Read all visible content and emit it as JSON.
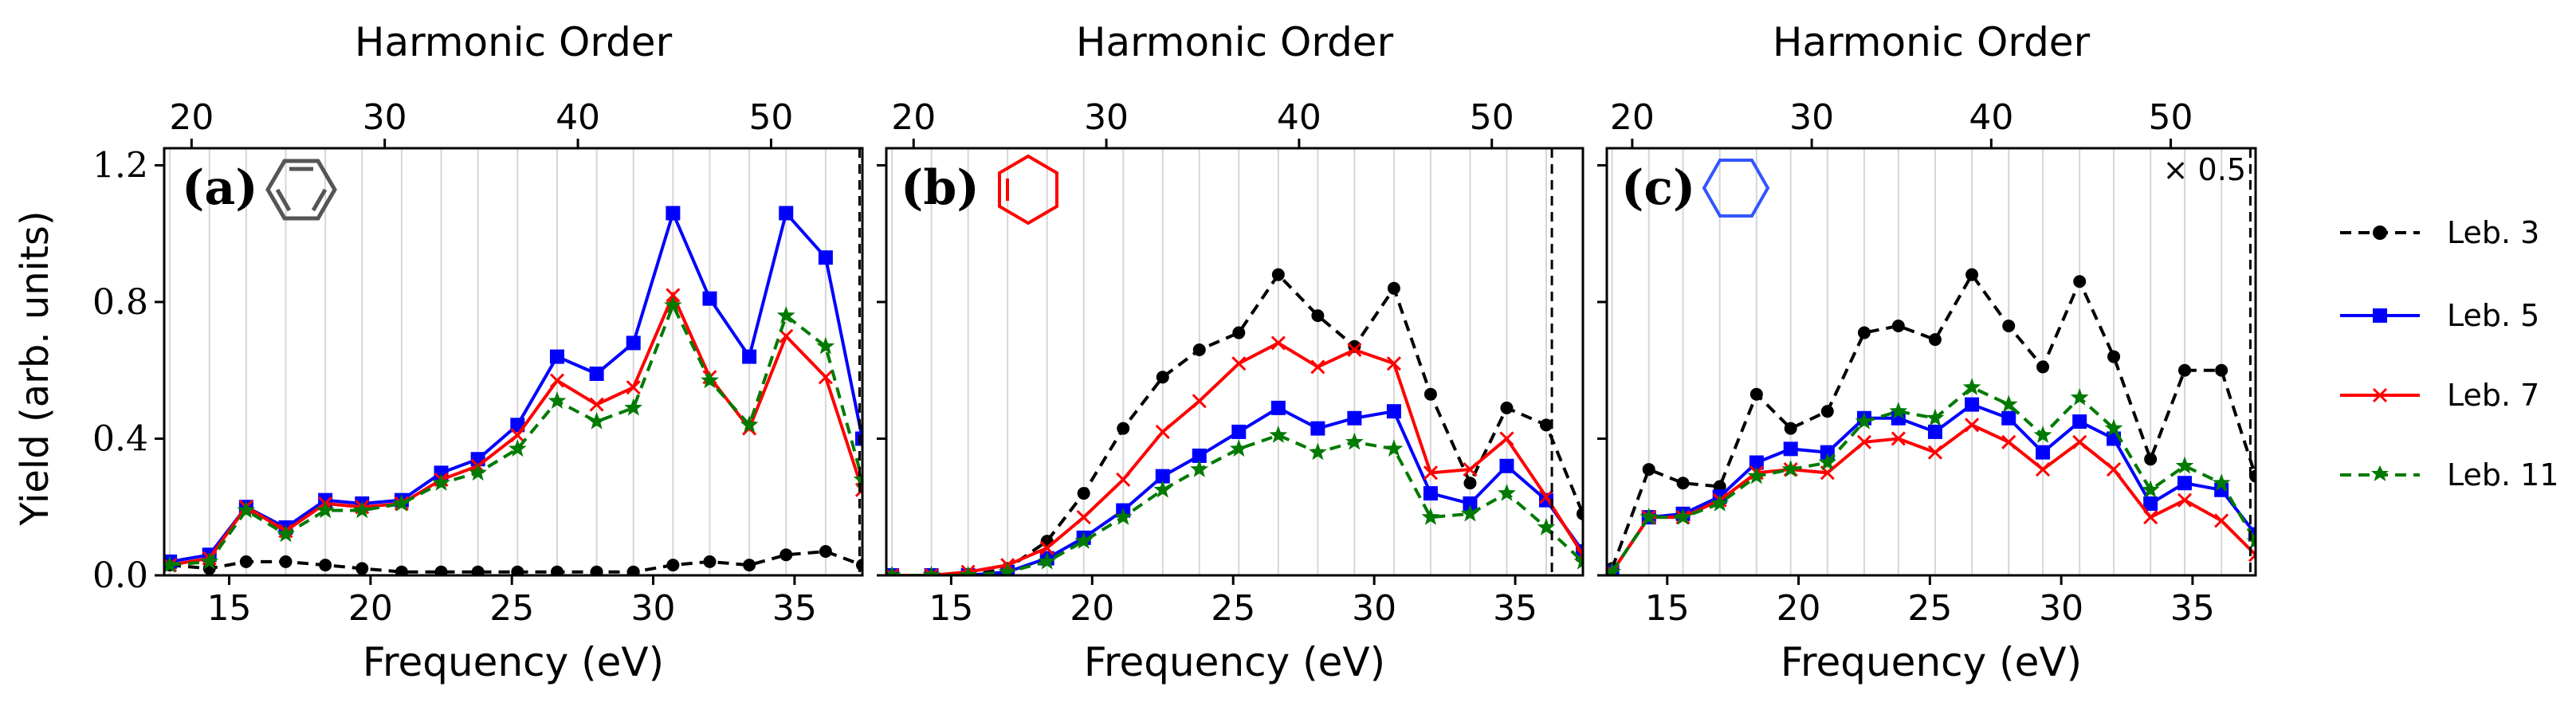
{
  "figure": {
    "top_axis_label": "Harmonic Order",
    "bottom_axis_label": "Frequency (eV)",
    "y_axis_label": "Yield (arb. units)",
    "legend": [
      "Leb. 3",
      "Leb. 5",
      "Leb. 7",
      "Leb. 11"
    ],
    "colors": {
      "Leb. 3": "#000000",
      "Leb. 5": "#0000ff",
      "Leb. 7": "#ff0000",
      "Leb. 11": "#007a00"
    },
    "molecule_icons": [
      {
        "panel": "a",
        "molecule": "benzene-ring-icon",
        "color": "#555555"
      },
      {
        "panel": "b",
        "molecule": "cyclohexene-ring-icon",
        "color": "#ff0000"
      },
      {
        "panel": "c",
        "molecule": "cyclohexane-ring-icon",
        "color": "#3355ff"
      }
    ]
  },
  "chart_data": [
    {
      "type": "line",
      "panel_label": "(a)",
      "annotation": "",
      "xlabel": "Frequency (eV)",
      "top_xlabel": "Harmonic Order",
      "ylabel": "Yield (arb. units)",
      "xlim": [
        12.7,
        37.4
      ],
      "ylim": [
        0,
        1.25
      ],
      "x_ticks": [
        15,
        20,
        25,
        30,
        35
      ],
      "y_ticks": [
        "0.0",
        "0.4",
        "0.8",
        "1.2"
      ],
      "top_ticks": [
        20,
        30,
        40,
        50
      ],
      "vertical_dashed_line_x": 37.3,
      "series": [
        {
          "name": "Leb. 3",
          "marker": "circle",
          "dash": true,
          "points": [
            [
              12.9,
              0.03
            ],
            [
              14.3,
              0.02
            ],
            [
              15.6,
              0.04
            ],
            [
              17.0,
              0.04
            ],
            [
              18.4,
              0.03
            ],
            [
              19.7,
              0.02
            ],
            [
              21.1,
              0.01
            ],
            [
              22.5,
              0.01
            ],
            [
              23.8,
              0.01
            ],
            [
              25.2,
              0.01
            ],
            [
              26.6,
              0.01
            ],
            [
              28.0,
              0.01
            ],
            [
              29.3,
              0.01
            ],
            [
              30.7,
              0.03
            ],
            [
              32.0,
              0.04
            ],
            [
              33.4,
              0.03
            ],
            [
              34.7,
              0.06
            ],
            [
              36.1,
              0.07
            ],
            [
              37.4,
              0.03
            ]
          ]
        },
        {
          "name": "Leb. 5",
          "marker": "square",
          "dash": false,
          "points": [
            [
              12.9,
              0.04
            ],
            [
              14.3,
              0.06
            ],
            [
              15.6,
              0.2
            ],
            [
              17.0,
              0.14
            ],
            [
              18.4,
              0.22
            ],
            [
              19.7,
              0.21
            ],
            [
              21.1,
              0.22
            ],
            [
              22.5,
              0.3
            ],
            [
              23.8,
              0.34
            ],
            [
              25.2,
              0.44
            ],
            [
              26.6,
              0.64
            ],
            [
              28.0,
              0.59
            ],
            [
              29.3,
              0.68
            ],
            [
              30.7,
              1.06
            ],
            [
              32.0,
              0.81
            ],
            [
              33.4,
              0.64
            ],
            [
              34.7,
              1.06
            ],
            [
              36.1,
              0.93
            ],
            [
              37.4,
              0.4
            ]
          ]
        },
        {
          "name": "Leb. 7",
          "marker": "cross",
          "dash": false,
          "points": [
            [
              12.9,
              0.03
            ],
            [
              14.3,
              0.05
            ],
            [
              15.6,
              0.2
            ],
            [
              17.0,
              0.13
            ],
            [
              18.4,
              0.21
            ],
            [
              19.7,
              0.2
            ],
            [
              21.1,
              0.21
            ],
            [
              22.5,
              0.28
            ],
            [
              23.8,
              0.32
            ],
            [
              25.2,
              0.41
            ],
            [
              26.6,
              0.57
            ],
            [
              28.0,
              0.5
            ],
            [
              29.3,
              0.55
            ],
            [
              30.7,
              0.82
            ],
            [
              32.0,
              0.58
            ],
            [
              33.4,
              0.43
            ],
            [
              34.7,
              0.7
            ],
            [
              36.1,
              0.58
            ],
            [
              37.4,
              0.25
            ]
          ]
        },
        {
          "name": "Leb. 11",
          "marker": "star",
          "dash": true,
          "points": [
            [
              12.9,
              0.03
            ],
            [
              14.3,
              0.04
            ],
            [
              15.6,
              0.19
            ],
            [
              17.0,
              0.12
            ],
            [
              18.4,
              0.19
            ],
            [
              19.7,
              0.19
            ],
            [
              21.1,
              0.21
            ],
            [
              22.5,
              0.27
            ],
            [
              23.8,
              0.3
            ],
            [
              25.2,
              0.37
            ],
            [
              26.6,
              0.51
            ],
            [
              28.0,
              0.45
            ],
            [
              29.3,
              0.49
            ],
            [
              30.7,
              0.79
            ],
            [
              32.0,
              0.57
            ],
            [
              33.4,
              0.44
            ],
            [
              34.7,
              0.76
            ],
            [
              36.1,
              0.67
            ],
            [
              37.4,
              0.28
            ]
          ]
        }
      ]
    },
    {
      "type": "line",
      "panel_label": "(b)",
      "annotation": "",
      "xlabel": "Frequency (eV)",
      "top_xlabel": "Harmonic Order",
      "ylabel": "",
      "xlim": [
        12.7,
        37.4
      ],
      "ylim": [
        0,
        1.25
      ],
      "x_ticks": [
        15,
        20,
        25,
        30,
        35
      ],
      "y_ticks": [],
      "top_ticks": [
        20,
        30,
        40,
        50
      ],
      "vertical_dashed_line_x": 36.3,
      "series": [
        {
          "name": "Leb. 3",
          "marker": "circle",
          "dash": true,
          "points": [
            [
              12.9,
              0.0
            ],
            [
              14.3,
              0.0
            ],
            [
              15.6,
              0.0
            ],
            [
              17.0,
              0.02
            ],
            [
              18.4,
              0.1
            ],
            [
              19.7,
              0.24
            ],
            [
              21.1,
              0.43
            ],
            [
              22.5,
              0.58
            ],
            [
              23.8,
              0.66
            ],
            [
              25.2,
              0.71
            ],
            [
              26.6,
              0.88
            ],
            [
              28.0,
              0.76
            ],
            [
              29.3,
              0.67
            ],
            [
              30.7,
              0.84
            ],
            [
              32.0,
              0.53
            ],
            [
              33.4,
              0.27
            ],
            [
              34.7,
              0.49
            ],
            [
              36.1,
              0.44
            ],
            [
              37.4,
              0.18
            ]
          ]
        },
        {
          "name": "Leb. 5",
          "marker": "square",
          "dash": false,
          "points": [
            [
              12.9,
              0.0
            ],
            [
              14.3,
              0.0
            ],
            [
              15.6,
              0.0
            ],
            [
              17.0,
              0.01
            ],
            [
              18.4,
              0.05
            ],
            [
              19.7,
              0.11
            ],
            [
              21.1,
              0.19
            ],
            [
              22.5,
              0.29
            ],
            [
              23.8,
              0.35
            ],
            [
              25.2,
              0.42
            ],
            [
              26.6,
              0.49
            ],
            [
              28.0,
              0.43
            ],
            [
              29.3,
              0.46
            ],
            [
              30.7,
              0.48
            ],
            [
              32.0,
              0.24
            ],
            [
              33.4,
              0.21
            ],
            [
              34.7,
              0.32
            ],
            [
              36.1,
              0.22
            ],
            [
              37.4,
              0.07
            ]
          ]
        },
        {
          "name": "Leb. 7",
          "marker": "cross",
          "dash": false,
          "points": [
            [
              12.9,
              0.0
            ],
            [
              14.3,
              0.0
            ],
            [
              15.6,
              0.01
            ],
            [
              17.0,
              0.03
            ],
            [
              18.4,
              0.08
            ],
            [
              19.7,
              0.17
            ],
            [
              21.1,
              0.28
            ],
            [
              22.5,
              0.42
            ],
            [
              23.8,
              0.51
            ],
            [
              25.2,
              0.62
            ],
            [
              26.6,
              0.68
            ],
            [
              28.0,
              0.61
            ],
            [
              29.3,
              0.66
            ],
            [
              30.7,
              0.62
            ],
            [
              32.0,
              0.3
            ],
            [
              33.4,
              0.31
            ],
            [
              34.7,
              0.4
            ],
            [
              36.1,
              0.23
            ],
            [
              37.4,
              0.06
            ]
          ]
        },
        {
          "name": "Leb. 11",
          "marker": "star",
          "dash": true,
          "points": [
            [
              12.9,
              0.0
            ],
            [
              14.3,
              0.0
            ],
            [
              15.6,
              0.0
            ],
            [
              17.0,
              0.01
            ],
            [
              18.4,
              0.04
            ],
            [
              19.7,
              0.1
            ],
            [
              21.1,
              0.17
            ],
            [
              22.5,
              0.25
            ],
            [
              23.8,
              0.31
            ],
            [
              25.2,
              0.37
            ],
            [
              26.6,
              0.41
            ],
            [
              28.0,
              0.36
            ],
            [
              29.3,
              0.39
            ],
            [
              30.7,
              0.37
            ],
            [
              32.0,
              0.17
            ],
            [
              33.4,
              0.18
            ],
            [
              34.7,
              0.24
            ],
            [
              36.1,
              0.14
            ],
            [
              37.4,
              0.04
            ]
          ]
        }
      ]
    },
    {
      "type": "line",
      "panel_label": "(c)",
      "annotation": "× 0.5",
      "xlabel": "Frequency (eV)",
      "top_xlabel": "Harmonic Order",
      "ylabel": "",
      "xlim": [
        12.7,
        37.4
      ],
      "ylim": [
        0,
        1.25
      ],
      "x_ticks": [
        15,
        20,
        25,
        30,
        35
      ],
      "y_ticks": [],
      "top_ticks": [
        20,
        30,
        40,
        50
      ],
      "vertical_dashed_line_x": 37.2,
      "series": [
        {
          "name": "Leb. 3",
          "marker": "circle",
          "dash": true,
          "points": [
            [
              12.9,
              0.02
            ],
            [
              14.3,
              0.31
            ],
            [
              15.6,
              0.27
            ],
            [
              17.0,
              0.26
            ],
            [
              18.4,
              0.53
            ],
            [
              19.7,
              0.43
            ],
            [
              21.1,
              0.48
            ],
            [
              22.5,
              0.71
            ],
            [
              23.8,
              0.73
            ],
            [
              25.2,
              0.69
            ],
            [
              26.6,
              0.88
            ],
            [
              28.0,
              0.73
            ],
            [
              29.3,
              0.61
            ],
            [
              30.7,
              0.86
            ],
            [
              32.0,
              0.64
            ],
            [
              33.4,
              0.34
            ],
            [
              34.7,
              0.6
            ],
            [
              36.1,
              0.6
            ],
            [
              37.4,
              0.29
            ]
          ]
        },
        {
          "name": "Leb. 5",
          "marker": "square",
          "dash": false,
          "points": [
            [
              12.9,
              0.01
            ],
            [
              14.3,
              0.17
            ],
            [
              15.6,
              0.18
            ],
            [
              17.0,
              0.23
            ],
            [
              18.4,
              0.33
            ],
            [
              19.7,
              0.37
            ],
            [
              21.1,
              0.36
            ],
            [
              22.5,
              0.46
            ],
            [
              23.8,
              0.46
            ],
            [
              25.2,
              0.42
            ],
            [
              26.6,
              0.5
            ],
            [
              28.0,
              0.46
            ],
            [
              29.3,
              0.36
            ],
            [
              30.7,
              0.45
            ],
            [
              32.0,
              0.4
            ],
            [
              33.4,
              0.21
            ],
            [
              34.7,
              0.27
            ],
            [
              36.1,
              0.25
            ],
            [
              37.4,
              0.12
            ]
          ]
        },
        {
          "name": "Leb. 7",
          "marker": "cross",
          "dash": false,
          "points": [
            [
              12.9,
              0.01
            ],
            [
              14.3,
              0.17
            ],
            [
              15.6,
              0.17
            ],
            [
              17.0,
              0.22
            ],
            [
              18.4,
              0.3
            ],
            [
              19.7,
              0.31
            ],
            [
              21.1,
              0.3
            ],
            [
              22.5,
              0.39
            ],
            [
              23.8,
              0.4
            ],
            [
              25.2,
              0.36
            ],
            [
              26.6,
              0.44
            ],
            [
              28.0,
              0.39
            ],
            [
              29.3,
              0.31
            ],
            [
              30.7,
              0.39
            ],
            [
              32.0,
              0.31
            ],
            [
              33.4,
              0.17
            ],
            [
              34.7,
              0.22
            ],
            [
              36.1,
              0.16
            ],
            [
              37.4,
              0.06
            ]
          ]
        },
        {
          "name": "Leb. 11",
          "marker": "star",
          "dash": true,
          "points": [
            [
              12.9,
              0.01
            ],
            [
              14.3,
              0.17
            ],
            [
              15.6,
              0.17
            ],
            [
              17.0,
              0.21
            ],
            [
              18.4,
              0.29
            ],
            [
              19.7,
              0.31
            ],
            [
              21.1,
              0.33
            ],
            [
              22.5,
              0.45
            ],
            [
              23.8,
              0.48
            ],
            [
              25.2,
              0.46
            ],
            [
              26.6,
              0.55
            ],
            [
              28.0,
              0.5
            ],
            [
              29.3,
              0.41
            ],
            [
              30.7,
              0.52
            ],
            [
              32.0,
              0.43
            ],
            [
              33.4,
              0.25
            ],
            [
              34.7,
              0.32
            ],
            [
              36.1,
              0.27
            ],
            [
              37.4,
              0.1
            ]
          ]
        }
      ]
    }
  ]
}
